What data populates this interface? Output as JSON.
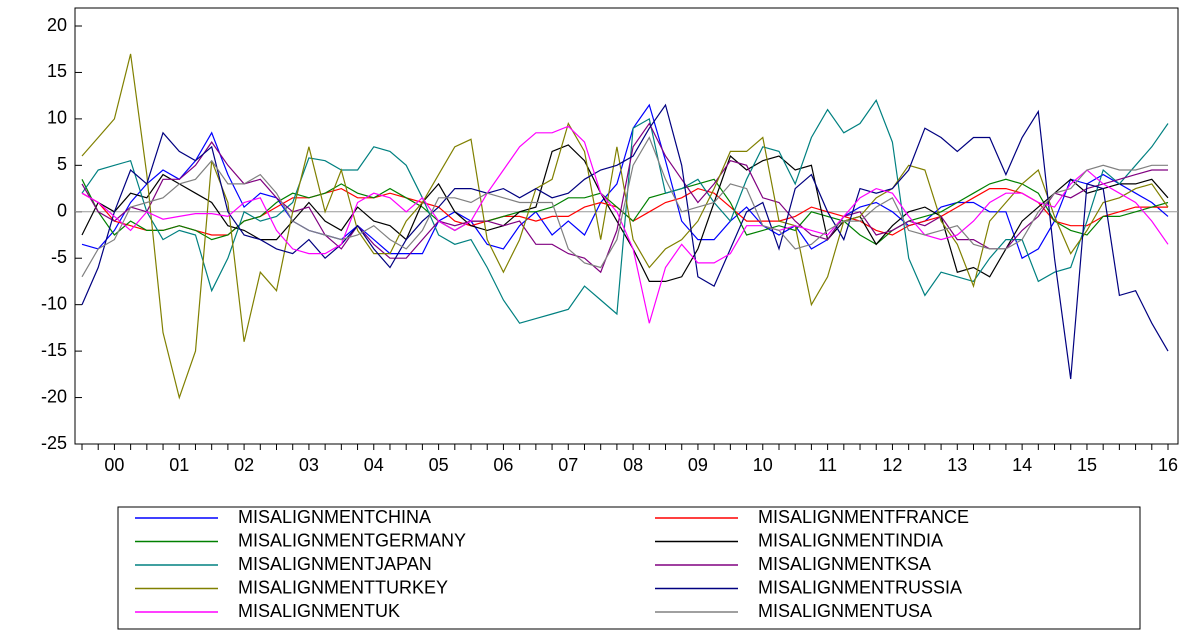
{
  "chart_data": {
    "type": "line",
    "categories": [
      null,
      null,
      "00",
      null,
      null,
      null,
      "01",
      null,
      null,
      null,
      "02",
      null,
      null,
      null,
      "03",
      null,
      null,
      null,
      "04",
      null,
      null,
      null,
      "05",
      null,
      null,
      null,
      "06",
      null,
      null,
      null,
      "07",
      null,
      null,
      null,
      "08",
      null,
      null,
      null,
      "09",
      null,
      null,
      null,
      "10",
      null,
      null,
      null,
      "11",
      null,
      null,
      null,
      "12",
      null,
      null,
      null,
      "13",
      null,
      null,
      null,
      "14",
      null,
      null,
      null,
      "15",
      null,
      null,
      null,
      null,
      "16"
    ],
    "ylim": [
      -25,
      20
    ],
    "yticks": [
      -25,
      -20,
      -15,
      -10,
      -5,
      0,
      5,
      10,
      15,
      20
    ],
    "zero_line": true,
    "series": [
      {
        "name": "MISALIGNMENTCHINA",
        "color": "#0000ff",
        "values": [
          -3.5,
          -4,
          -2,
          1,
          3,
          4.5,
          3.5,
          5.5,
          8.5,
          4,
          0.5,
          2,
          1.5,
          -1,
          -2,
          -2.5,
          -3,
          -1.5,
          -3,
          -4.5,
          -4.5,
          -4.5,
          -1,
          0,
          -1,
          -3.5,
          -4,
          -1.5,
          0,
          -2.5,
          -1,
          -2.5,
          1,
          3,
          9,
          11.5,
          5.5,
          -1,
          -3,
          -3,
          -1,
          0.5,
          -1.5,
          -2.5,
          -1.5,
          -4,
          -3,
          -0.5,
          0.5,
          1,
          0,
          -1.5,
          -1,
          0.5,
          1,
          1,
          0,
          0,
          -5,
          -4,
          -1,
          3.5,
          3,
          4,
          3,
          2,
          1,
          -0.5
        ]
      },
      {
        "name": "MISALIGNMENTFRANCE",
        "color": "#ff0000",
        "values": [
          2,
          1,
          -1,
          -1.5,
          -2,
          -2,
          -1.5,
          -2,
          -2.5,
          -2.5,
          -1,
          -0.5,
          0.5,
          1.5,
          1.5,
          2,
          2.5,
          1.5,
          1.5,
          2,
          1.5,
          1,
          0.5,
          -1,
          -1.5,
          -1,
          -0.5,
          -0.5,
          -1,
          -0.5,
          -0.5,
          0.5,
          1,
          0.5,
          -1,
          0,
          1,
          1.5,
          2.5,
          2,
          0.5,
          -1,
          -1,
          -1,
          -0.5,
          0.5,
          0,
          -0.5,
          -1,
          -2,
          -2.5,
          -1.5,
          -1,
          -0.5,
          0.5,
          1.5,
          2.5,
          2.5,
          2,
          1,
          -1,
          -1.5,
          -1.5,
          -0.5,
          0,
          0.5,
          0.5,
          0.5
        ]
      },
      {
        "name": "MISALIGNMENTGERMANY",
        "color": "#008000",
        "values": [
          3.5,
          0,
          -2.5,
          -1,
          -2,
          -2,
          -1.5,
          -2,
          -3,
          -2.5,
          -1,
          -0.5,
          1,
          2,
          1.5,
          2,
          3,
          2,
          1.5,
          2.5,
          1.5,
          0.5,
          -1,
          -2,
          -1,
          -1,
          -0.5,
          0,
          0,
          0.5,
          1.5,
          1.5,
          2,
          0.5,
          -1,
          1.5,
          2,
          2.5,
          3,
          3.5,
          1,
          -2.5,
          -2,
          -1.5,
          -2,
          0,
          -0.5,
          -1,
          -2.5,
          -3.5,
          -2,
          -1,
          -0.5,
          0,
          1,
          2,
          3,
          3.5,
          3,
          2,
          -1,
          -2,
          -2.5,
          -0.5,
          -0.5,
          0,
          0.5,
          1
        ]
      },
      {
        "name": "MISALIGNMENTINDIA",
        "color": "#000000",
        "values": [
          -2.5,
          1,
          0,
          2,
          1.5,
          4,
          3,
          2,
          1,
          -1.5,
          -2,
          -3,
          -3,
          -1,
          1,
          -1,
          -2,
          0.5,
          -1,
          -1.5,
          -3,
          1,
          3,
          0,
          -1.5,
          -2,
          -1.5,
          0,
          0.5,
          6.5,
          7.2,
          5.5,
          2,
          -1,
          -4,
          -7.5,
          -7.5,
          -7,
          -4,
          1,
          6,
          4.5,
          5.5,
          6,
          4.5,
          5,
          -3,
          -1,
          -0.5,
          -3.5,
          -1.5,
          0,
          0.5,
          -0.5,
          -6.5,
          -6,
          -7,
          -4,
          -1,
          0.5,
          2,
          3.5,
          2,
          2.5,
          3,
          3,
          3.5,
          1.5
        ]
      },
      {
        "name": "MISALIGNMENTJAPAN",
        "color": "#008080",
        "values": [
          2,
          4.5,
          5,
          5.5,
          0,
          -3,
          -2,
          -2.5,
          -8.5,
          -5,
          0,
          -1,
          -0.5,
          1,
          5.8,
          5.5,
          4.5,
          4.5,
          7,
          6.5,
          5,
          1.5,
          -2.5,
          -3.5,
          -3,
          -6,
          -9.5,
          -12,
          -11.5,
          -11,
          -10.5,
          -8,
          -9.5,
          -11,
          9,
          10,
          2,
          2.5,
          3.5,
          1,
          -1,
          3.5,
          7,
          6.5,
          3,
          8,
          11,
          8.5,
          9.5,
          12,
          7.5,
          -5,
          -9,
          -6.5,
          -7,
          -7.5,
          -5,
          -3,
          -3,
          -7.5,
          -6.5,
          -6,
          -1,
          4.5,
          3,
          5,
          7,
          9.5
        ]
      },
      {
        "name": "MISALIGNMENTKSA",
        "color": "#800080",
        "values": [
          3,
          0,
          -1,
          0.5,
          0,
          3.5,
          3.5,
          5,
          7.5,
          5,
          3,
          3.5,
          1.5,
          0,
          0.5,
          -2.5,
          -4,
          -1.5,
          -3.5,
          -5,
          -5,
          -3,
          -1,
          -1.5,
          -1,
          -1,
          -1.5,
          -1,
          -3.5,
          -3.5,
          -4.5,
          -5,
          -6.5,
          -2,
          7,
          9.5,
          6,
          3.5,
          1,
          3,
          5.5,
          5,
          1.5,
          1,
          -1,
          -2.5,
          -3,
          -0.5,
          0,
          -2.5,
          -2,
          -1,
          -1.5,
          -0.5,
          -3,
          -3,
          -4,
          -4,
          -2,
          -0.5,
          2,
          1.5,
          2.5,
          3,
          3.5,
          4,
          4.5,
          4.5
        ]
      },
      {
        "name": "MISALIGNMENTTURKEY",
        "color": "#808000",
        "values": [
          6,
          8,
          10,
          17,
          4,
          -13,
          -20,
          -15,
          5.5,
          1,
          -14,
          -6.5,
          -8.5,
          0,
          7,
          0,
          4.5,
          -2,
          -4.5,
          -4.5,
          -1,
          1,
          4,
          7,
          7.8,
          -3,
          -6.5,
          -3,
          2.5,
          3.5,
          9.5,
          6.5,
          -3,
          7,
          -3,
          -6,
          -4,
          -3,
          -1,
          2.5,
          6.5,
          6.5,
          8,
          -1,
          -1.5,
          -10,
          -7,
          -1,
          -0.5,
          1.5,
          2.5,
          5,
          4.5,
          -1,
          -3.5,
          -8,
          -1,
          1,
          3,
          4.5,
          -0.5,
          -4.5,
          -2,
          1,
          1.5,
          2.5,
          3,
          0.5
        ]
      },
      {
        "name": "MISALIGNMENTRUSSIA",
        "color": "#000080",
        "values": [
          -10,
          -6,
          0,
          4.5,
          3,
          8.5,
          6.5,
          5.5,
          7,
          0,
          -2.5,
          -3,
          -4,
          -4.5,
          -3,
          -5,
          -3.5,
          -1.5,
          -4,
          -6,
          -3,
          -1,
          0.5,
          2.5,
          2.5,
          2,
          2.5,
          1.5,
          2.5,
          1.5,
          2,
          3.5,
          4.5,
          5,
          6,
          9,
          11.5,
          5,
          -7,
          -8,
          -4,
          0,
          1,
          -4,
          2.5,
          4,
          0,
          -3,
          2.5,
          2,
          2.5,
          4.5,
          9,
          8,
          6.5,
          8,
          8,
          4,
          8,
          10.8,
          -5,
          -18,
          3,
          2.5,
          -9,
          -8.5,
          -12,
          -15
        ]
      },
      {
        "name": "MISALIGNMENTUK",
        "color": "#ff00ff",
        "values": [
          2,
          1,
          -0.5,
          -2,
          0,
          -0.8,
          -0.5,
          -0.2,
          -0.2,
          -0.5,
          1,
          1.5,
          -2,
          -4,
          -4.5,
          -4.5,
          -3.5,
          1,
          2,
          1.5,
          0,
          1.5,
          -1,
          -2,
          -1,
          2,
          4.5,
          7,
          8.5,
          8.5,
          9.2,
          7.5,
          2,
          0,
          -4,
          -12,
          -6,
          -3.5,
          -5.5,
          -5.5,
          -4.5,
          -1.5,
          -1.5,
          -2,
          -1.5,
          -2,
          -2.5,
          -0.5,
          1.5,
          2.5,
          2,
          -0.5,
          -2.5,
          -3,
          -2.5,
          -1,
          1,
          2,
          2,
          1,
          0.5,
          3,
          4.5,
          3,
          2,
          1,
          -1,
          -3.5
        ]
      },
      {
        "name": "MISALIGNMENTUSA",
        "color": "#808080",
        "values": [
          -7,
          -4,
          -3,
          0.5,
          1,
          1.5,
          3,
          3.5,
          5.5,
          3,
          3,
          4,
          2,
          -1,
          -2,
          -2.5,
          -3,
          -2.5,
          -1.5,
          -3,
          -4,
          -2,
          1.5,
          1.5,
          1,
          2,
          1.5,
          1,
          1,
          1,
          -4,
          -5.5,
          -6,
          -3,
          5,
          8,
          3.5,
          0,
          0.5,
          1,
          3,
          2.5,
          -1.5,
          -2,
          -4,
          -3.5,
          -2,
          -1,
          -1,
          0.5,
          1.5,
          -2,
          -2.5,
          -2,
          -1.5,
          -3.5,
          -4,
          -4,
          -3,
          0,
          2,
          2.5,
          4.5,
          5,
          4.5,
          4.5,
          5,
          5
        ]
      }
    ]
  }
}
